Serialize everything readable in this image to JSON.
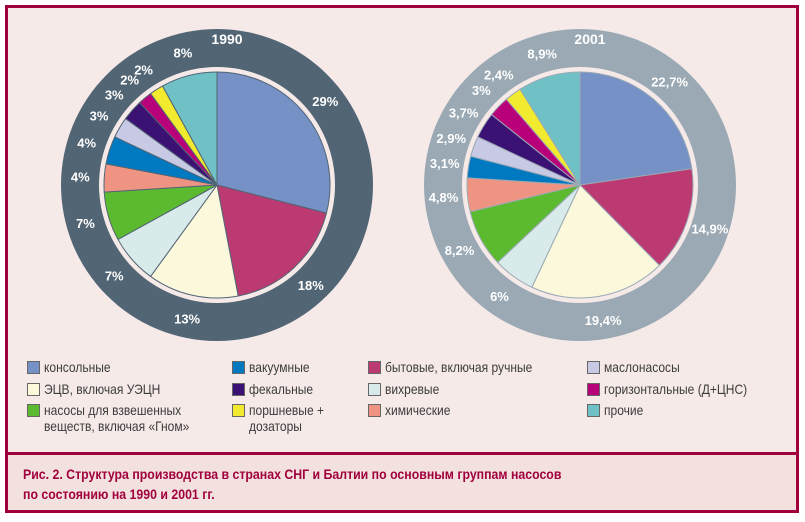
{
  "chart_data": [
    {
      "type": "pie",
      "title": "1990",
      "ring_color": "#526574",
      "labels": [
        "консольные",
        "бытовые, включая ручные",
        "ЭЦВ, включая УЭЦН",
        "вихревые",
        "насосы для взвешенных веществ, включая «Гном»",
        "химические",
        "вакуумные",
        "маслонасосы",
        "фекальные",
        "горизонтальные (Д+ЦНС)",
        "поршневые + дозаторы",
        "прочие"
      ],
      "values": [
        29,
        18,
        13,
        7,
        7,
        4,
        4,
        3,
        3,
        2,
        2,
        8
      ],
      "value_labels": [
        "29%",
        "18%",
        "13%",
        "7%",
        "7%",
        "4%",
        "4%",
        "3%",
        "3%",
        "2%",
        "2%",
        "8%"
      ]
    },
    {
      "type": "pie",
      "title": "2001",
      "ring_color": "#9aa9b4",
      "labels": [
        "консольные",
        "бытовые, включая ручные",
        "ЭЦВ, включая УЭЦН",
        "вихревые",
        "насосы для взвешенных веществ, включая «Гном»",
        "химические",
        "вакуумные",
        "маслонасосы",
        "фекальные",
        "горизонтальные (Д+ЦНС)",
        "поршневые + дозаторы",
        "прочие"
      ],
      "values": [
        22.7,
        14.9,
        19.4,
        6,
        8.2,
        4.8,
        3.1,
        2.9,
        3.7,
        3,
        2.4,
        8.9
      ],
      "value_labels": [
        "22,7%",
        "14,9%",
        "19,4%",
        "6%",
        "8,2%",
        "4,8%",
        "3,1%",
        "2,9%",
        "3,7%",
        "3%",
        "2,4%",
        "8,9%"
      ]
    }
  ],
  "colors": [
    "#7591c6",
    "#bb3a72",
    "#fcf8dc",
    "#d8eaea",
    "#5bba2f",
    "#ef9483",
    "#0079c0",
    "#c8c9e4",
    "#3b1174",
    "#b8007a",
    "#f2ea2e",
    "#6fc1c5"
  ],
  "legend": [
    {
      "label": "консольные",
      "color": "#7591c6"
    },
    {
      "label": "ЭЦВ, включая УЭЦН",
      "color": "#fcf8dc"
    },
    {
      "label": "насосы для взвешенных",
      "label2": "веществ, включая «Гном»",
      "color": "#5bba2f"
    },
    {
      "label": "вакуумные",
      "color": "#0079c0"
    },
    {
      "label": "фекальные",
      "color": "#3b1174"
    },
    {
      "label": "поршневые +",
      "label2": "дозаторы",
      "color": "#f2ea2e"
    },
    {
      "label": "бытовые, включая ручные",
      "color": "#bb3a72"
    },
    {
      "label": "вихревые",
      "color": "#d8eaea"
    },
    {
      "label": "химические",
      "color": "#ef9483"
    },
    {
      "label": "маслонасосы",
      "color": "#c8c9e4"
    },
    {
      "label": "горизонтальные (Д+ЦНС)",
      "color": "#b8007a"
    },
    {
      "label": "прочие",
      "color": "#6fc1c5"
    }
  ],
  "caption": {
    "line1": "Рис. 2. Структура производства в странах СНГ и Балтии по основным группам насосов",
    "line2": "по состоянию на 1990 и 2001 гг."
  }
}
